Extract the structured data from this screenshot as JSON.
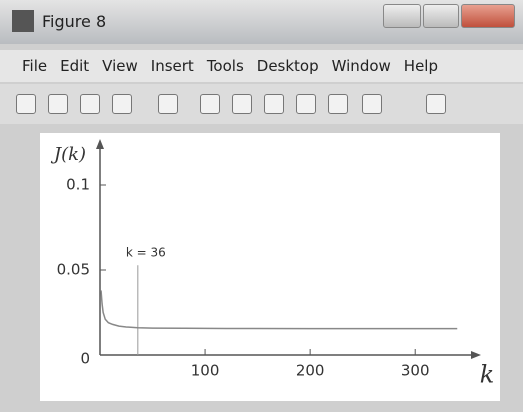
{
  "window": {
    "title": "Figure 8",
    "menu": [
      "File",
      "Edit",
      "View",
      "Insert",
      "Tools",
      "Desktop",
      "Window",
      "Help"
    ]
  },
  "chart_data": {
    "type": "line",
    "x_label": "k",
    "y_label": "J(k)",
    "x": [
      1,
      2,
      3,
      5,
      8,
      12,
      18,
      25,
      36,
      50,
      80,
      120,
      200,
      300,
      340
    ],
    "values": [
      0.038,
      0.03,
      0.025,
      0.021,
      0.019,
      0.018,
      0.017,
      0.0165,
      0.016,
      0.0158,
      0.0157,
      0.0156,
      0.0155,
      0.0155,
      0.0155
    ],
    "color": "#888888",
    "xlim": [
      0,
      355
    ],
    "ylim": [
      0,
      0.12
    ],
    "xticks": [
      100,
      200,
      300
    ],
    "yticks": [
      0,
      0.05,
      0.1
    ],
    "annotation": {
      "text": "k = 36",
      "x": 36
    }
  }
}
